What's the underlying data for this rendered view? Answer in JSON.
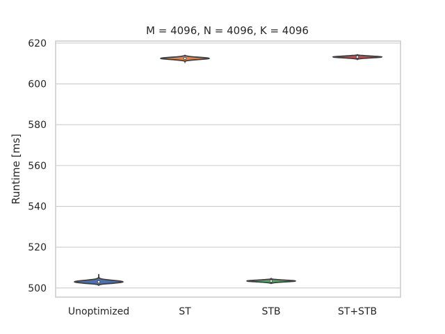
{
  "chart_data": {
    "type": "violin",
    "title": "M = 4096, N = 4096, K = 4096",
    "xlabel": "",
    "ylabel": "Runtime [ms]",
    "ylim": [
      495.5,
      621
    ],
    "yticks": [
      500,
      520,
      540,
      560,
      580,
      600,
      620
    ],
    "grid": true,
    "legend": "none",
    "categories": [
      "Unoptimized",
      "ST",
      "STB",
      "ST+STB"
    ],
    "series": [
      {
        "category": "Unoptimized",
        "color": "#4c72b0",
        "median": 503.0,
        "min": 501.3,
        "max": 506.8,
        "q1": 502.5,
        "q3": 503.6
      },
      {
        "category": "ST",
        "color": "#dd8452",
        "median": 612.5,
        "min": 610.9,
        "max": 614.2,
        "q1": 612.0,
        "q3": 613.0
      },
      {
        "category": "STB",
        "color": "#55a868",
        "median": 503.4,
        "min": 502.0,
        "max": 504.6,
        "q1": 503.0,
        "q3": 503.8
      },
      {
        "category": "ST+STB",
        "color": "#c44e52",
        "median": 613.2,
        "min": 612.0,
        "max": 614.3,
        "q1": 612.8,
        "q3": 613.6
      }
    ]
  }
}
